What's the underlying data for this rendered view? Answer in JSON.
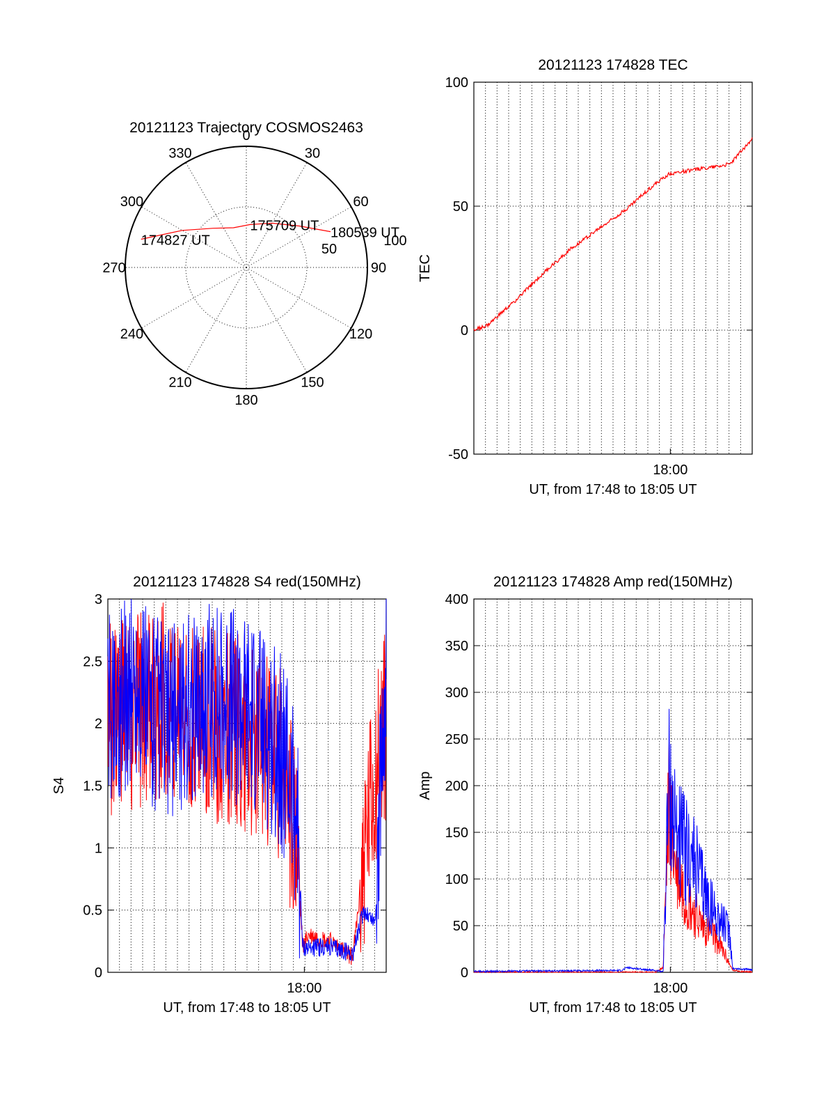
{
  "chart_data": [
    {
      "type": "polar",
      "title": "20121123 Trajectory COSMOS2463",
      "angle_labels": [
        "0",
        "30",
        "60",
        "90",
        "120",
        "150",
        "180",
        "210",
        "240",
        "270",
        "300",
        "330"
      ],
      "radial_labels": [
        "50",
        "100"
      ],
      "series": [
        {
          "color": "#ff0000",
          "points": [
            {
              "azimuth": 285,
              "elevation": 9
            },
            {
              "azimuth": 300,
              "elevation": 35
            },
            {
              "azimuth": 320,
              "elevation": 52
            },
            {
              "azimuth": 342,
              "elevation": 59
            },
            {
              "azimuth": 5,
              "elevation": 58
            },
            {
              "azimuth": 30,
              "elevation": 52
            },
            {
              "azimuth": 52,
              "elevation": 40
            },
            {
              "azimuth": 67,
              "elevation": 22
            }
          ]
        }
      ],
      "annotations": [
        {
          "text": "174827 UT",
          "azimuth": 285,
          "elevation": 9
        },
        {
          "text": "175709 UT",
          "azimuth": 5,
          "elevation": 58
        },
        {
          "text": "180539 UT",
          "azimuth": 67,
          "elevation": 22
        }
      ]
    },
    {
      "type": "line",
      "title": "20121123 174828 TEC",
      "ylabel": "TEC",
      "xlabel": "UT, from 17:48 to 18:05 UT",
      "ylim": [
        -50,
        100
      ],
      "yticks": [
        "100",
        "50",
        "0",
        "-50"
      ],
      "xtick_label": "18:00",
      "grid": true,
      "series": [
        {
          "color": "#ff0000",
          "x": [
            0.0,
            0.05,
            0.15,
            0.25,
            0.35,
            0.45,
            0.55,
            0.63,
            0.7,
            0.92,
            1.0
          ],
          "y": [
            0,
            2,
            12,
            23,
            33,
            41,
            49,
            57,
            63,
            67,
            77
          ]
        }
      ]
    },
    {
      "type": "line",
      "title": "20121123 174828 S4 red(150MHz)",
      "ylabel": "S4",
      "xlabel": "UT, from 17:48 to 18:05 UT",
      "ylim": [
        0,
        3
      ],
      "yticks": [
        "3",
        "2.5",
        "2",
        "1.5",
        "1",
        "0.5",
        "0"
      ],
      "xtick_label": "18:00",
      "grid": true,
      "series": [
        {
          "color": "#ff0000",
          "x": [
            0.0,
            0.1,
            0.2,
            0.35,
            0.5,
            0.62,
            0.68,
            0.7,
            0.72,
            0.8,
            0.88,
            0.92,
            0.96,
            1.0
          ],
          "y": [
            2.0,
            2.1,
            2.2,
            2.0,
            1.9,
            1.7,
            1.0,
            0.2,
            0.3,
            0.25,
            0.12,
            0.9,
            1.6,
            2.0
          ]
        },
        {
          "color": "#0000ff",
          "x": [
            0.0,
            0.1,
            0.2,
            0.35,
            0.5,
            0.62,
            0.68,
            0.7,
            0.72,
            0.8,
            0.88,
            0.92,
            0.96,
            1.0
          ],
          "y": [
            2.1,
            2.3,
            2.0,
            2.2,
            2.1,
            1.8,
            1.3,
            0.2,
            0.2,
            0.2,
            0.15,
            0.5,
            0.4,
            2.5
          ]
        }
      ]
    },
    {
      "type": "line",
      "title": "20121123 174828 Amp red(150MHz)",
      "ylabel": "Amp",
      "xlabel": "UT, from 17:48 to 18:05 UT",
      "ylim": [
        0,
        400
      ],
      "yticks": [
        "400",
        "350",
        "300",
        "250",
        "200",
        "150",
        "100",
        "50",
        "0"
      ],
      "xtick_label": "18:00",
      "grid": true,
      "series": [
        {
          "color": "#ff0000",
          "x": [
            0.0,
            0.65,
            0.68,
            0.7,
            0.72,
            0.75,
            0.78,
            0.82,
            0.86,
            0.9,
            0.93,
            1.0
          ],
          "y": [
            0,
            0,
            5,
            180,
            120,
            90,
            70,
            50,
            40,
            20,
            2,
            0
          ]
        },
        {
          "color": "#0000ff",
          "x": [
            0.0,
            0.53,
            0.55,
            0.68,
            0.7,
            0.72,
            0.76,
            0.8,
            0.85,
            0.9,
            0.92,
            0.93,
            1.0
          ],
          "y": [
            1,
            2,
            5,
            1,
            200,
            160,
            130,
            110,
            70,
            50,
            40,
            4,
            3
          ]
        }
      ]
    }
  ]
}
